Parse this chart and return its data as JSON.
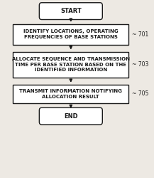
{
  "bg_color": "#ede9e3",
  "box_color": "#ffffff",
  "box_edge_color": "#1a1a1a",
  "text_color": "#1a1a1a",
  "arrow_color": "#1a1a1a",
  "start_end_label": [
    "START",
    "END"
  ],
  "boxes": [
    {
      "label": "IDENTIFY LOCATIONS, OPERATING\nFREQUENCIES OF BASE STATIONS",
      "tag": "701"
    },
    {
      "label": "ALLOCATE SEQUENCE AND TRANSMISSION\nTIME PER BASE STATION BASED ON THE\nIDENTIFIED INFORMATION",
      "tag": "703"
    },
    {
      "label": "TRANSMIT INFORMATION NOTIFYING\nALLOCATION RESULT",
      "tag": "705"
    }
  ],
  "font_size_box": 5.0,
  "font_size_tag": 5.5,
  "font_size_terminal": 6.0,
  "lw": 1.0
}
